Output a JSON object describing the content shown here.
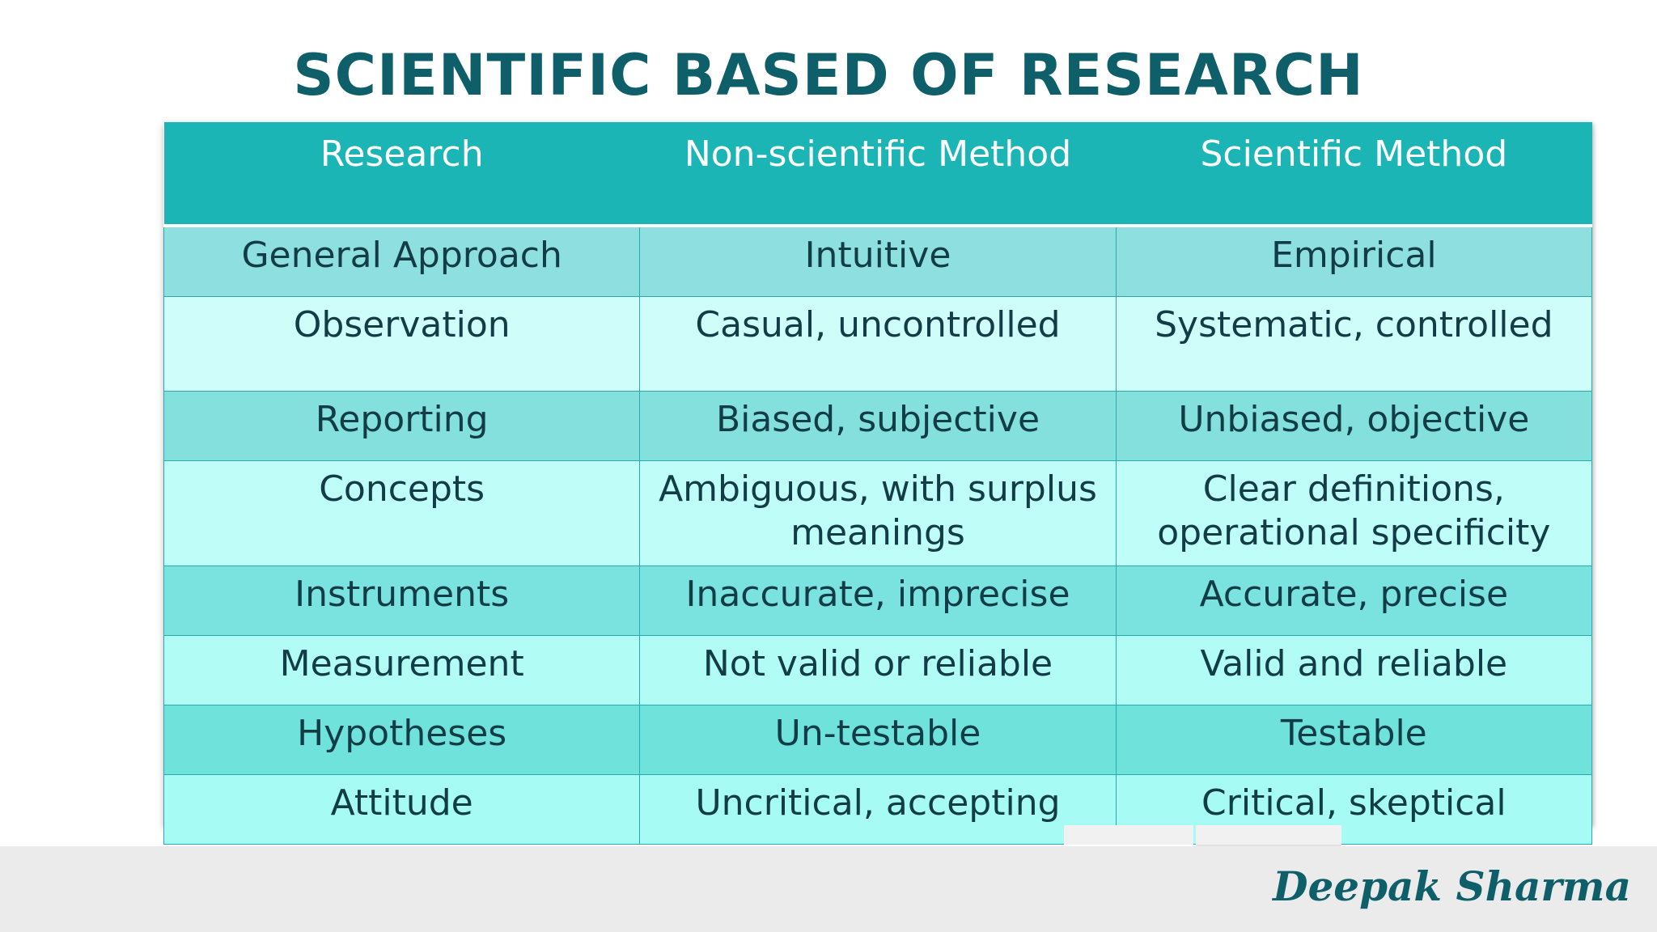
{
  "title": "SCIENTIFIC BASED OF RESEARCH",
  "table": {
    "headers": [
      "Research",
      "Non-scientific Method",
      "Scientific Method"
    ],
    "rows": [
      [
        "General Approach",
        "Intuitive",
        "Empirical"
      ],
      [
        "Observation",
        "Casual, uncontrolled",
        "Systematic, controlled"
      ],
      [
        "Reporting",
        "Biased, subjective",
        "Unbiased, objective"
      ],
      [
        "Concepts",
        "Ambiguous, with surplus meanings",
        "Clear definitions, operational specificity"
      ],
      [
        "Instruments",
        "Inaccurate, imprecise",
        "Accurate, precise"
      ],
      [
        "Measurement",
        "Not valid or reliable",
        "Valid and reliable"
      ],
      [
        "Hypotheses",
        "Un-testable",
        "Testable"
      ],
      [
        "Attitude",
        "Uncritical, accepting",
        "Critical, skeptical"
      ]
    ]
  },
  "signature": "Deepak Sharma",
  "colors": {
    "title": "#0e5f6a",
    "header_bg": "#1cb5b5",
    "header_text": "#ffffff",
    "cell_text": "#123c46",
    "footer_band": "#ebebeb"
  }
}
